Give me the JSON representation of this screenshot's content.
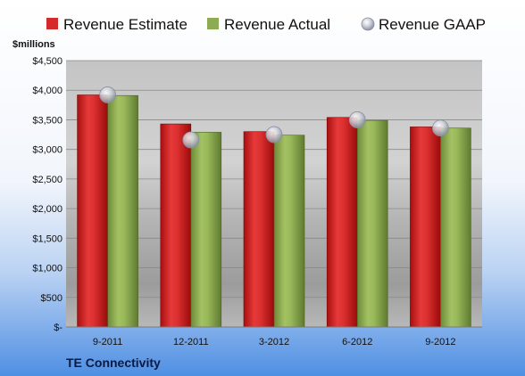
{
  "chart_data": {
    "type": "bar",
    "title": "",
    "ylabel": "$millions",
    "xlabel": "",
    "company": "TE Connectivity",
    "categories": [
      "9-2011",
      "12-2011",
      "3-2012",
      "6-2012",
      "9-2012"
    ],
    "ylim": [
      0,
      4500
    ],
    "yticks": [
      0,
      500,
      1000,
      1500,
      2000,
      2500,
      3000,
      3500,
      4000,
      4500
    ],
    "ytick_labels": [
      "$-",
      "$500",
      "$1,000",
      "$1,500",
      "$2,000",
      "$2,500",
      "$3,000",
      "$3,500",
      "$4,000",
      "$4,500"
    ],
    "grid": true,
    "legend_position": "top",
    "series": [
      {
        "name": "Revenue Estimate",
        "kind": "bar",
        "color": "#d42a2a",
        "values": [
          3920,
          3430,
          3300,
          3540,
          3380
        ]
      },
      {
        "name": "Revenue Actual",
        "kind": "bar",
        "color": "#8cab52",
        "values": [
          3910,
          3290,
          3240,
          3490,
          3360
        ]
      },
      {
        "name": "Revenue GAAP",
        "kind": "marker",
        "color": "#b5b9c8",
        "values": [
          3920,
          3160,
          3250,
          3500,
          3360
        ]
      }
    ]
  }
}
